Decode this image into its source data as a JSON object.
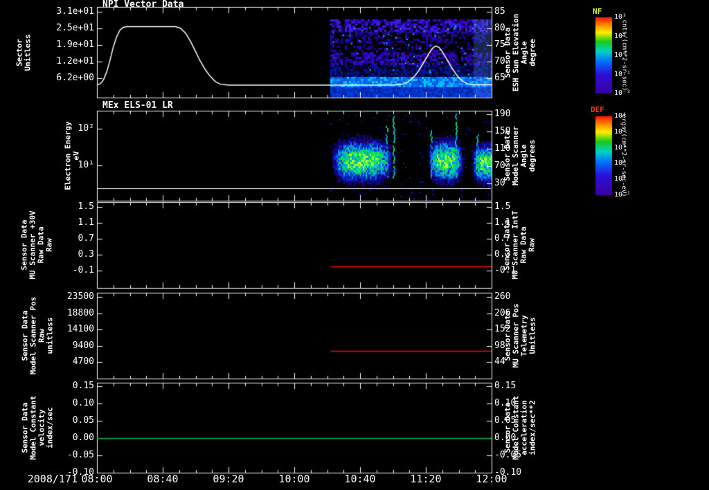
{
  "colors": {
    "background": "#000000",
    "axis": "#ffffff",
    "white_series": "#ffffff",
    "red_series": "#ff0000",
    "green_series": "#00b050",
    "nf_title_color": "#dce645",
    "def_title_color": "#ff3a00"
  },
  "xaxis": {
    "date_label": "2008/171",
    "tick_labels": [
      "08:00",
      "08:40",
      "09:20",
      "10:00",
      "10:40",
      "11:20",
      "12:00"
    ],
    "tick_minutes": [
      0,
      40,
      80,
      120,
      160,
      200,
      240
    ],
    "minor_tick_minutes": 10
  },
  "colorbars": [
    {
      "title": "NF",
      "unit": "cnts/(cm**2-sr-sec)",
      "tick_labels": [
        "10²",
        "10¹",
        "10⁰",
        "10⁻¹",
        "10⁻²"
      ],
      "gradient": [
        [
          0,
          "#ff1000"
        ],
        [
          0.1,
          "#ff8800"
        ],
        [
          0.2,
          "#ffee00"
        ],
        [
          0.32,
          "#18cc18"
        ],
        [
          0.45,
          "#00d2c8"
        ],
        [
          0.58,
          "#0072ff"
        ],
        [
          0.75,
          "#2a10d8"
        ],
        [
          1,
          "#3c00a0"
        ]
      ]
    },
    {
      "title": "DEF",
      "unit": "ergs/(cm**2-sr-sec-eV)",
      "tick_labels": [
        "10⁴",
        "10³",
        "10²",
        "10¹",
        "10⁰",
        "10⁻¹"
      ],
      "gradient": [
        [
          0,
          "#ff1000"
        ],
        [
          0.1,
          "#ff8800"
        ],
        [
          0.2,
          "#ffee00"
        ],
        [
          0.32,
          "#18cc18"
        ],
        [
          0.45,
          "#00d2c8"
        ],
        [
          0.58,
          "#0072ff"
        ],
        [
          0.75,
          "#2a10d8"
        ],
        [
          1,
          "#3c00a0"
        ]
      ]
    }
  ],
  "chart_data": [
    {
      "panel": 1,
      "type": "line+spectrogram",
      "title": "NPI Vector Data",
      "left_axis": {
        "label_lines": [
          "Sector",
          "Unitless"
        ],
        "tick_labels": [
          "3.1e+01",
          "2.5e+01",
          "1.9e+01",
          "1.2e+01",
          "6.2e+00"
        ],
        "tick_values": [
          31,
          25,
          19,
          12,
          6.2
        ]
      },
      "right_axis": {
        "label_lines": [
          "Sensor Data",
          "ESH Sun Elevation",
          "Angle",
          "degree"
        ],
        "tick_labels": [
          "85",
          "80",
          "75",
          "70",
          "65"
        ],
        "tick_values": [
          85,
          80,
          75,
          70,
          65
        ]
      },
      "series": [
        {
          "name": "esh-sun-elevation-angle",
          "color": "#ffffff",
          "axis": "right",
          "points": [
            [
              0,
              63
            ],
            [
              2,
              63.3
            ],
            [
              4,
              64.5
            ],
            [
              6,
              67
            ],
            [
              8,
              70.5
            ],
            [
              10,
              74.5
            ],
            [
              12,
              77.5
            ],
            [
              14,
              79.5
            ],
            [
              16,
              80.3
            ],
            [
              18,
              80.5
            ],
            [
              48,
              80.5
            ],
            [
              51,
              80
            ],
            [
              54,
              78.5
            ],
            [
              57,
              76
            ],
            [
              60,
              73
            ],
            [
              63,
              70
            ],
            [
              66,
              67.5
            ],
            [
              69,
              65.5
            ],
            [
              72,
              64
            ],
            [
              75,
              63.2
            ],
            [
              80,
              62.9
            ],
            [
              180,
              62.9
            ],
            [
              185,
              63.1
            ],
            [
              189,
              63.8
            ],
            [
              193,
              65.5
            ],
            [
              196,
              67.5
            ],
            [
              199,
              70
            ],
            [
              202,
              72.5
            ],
            [
              204,
              74
            ],
            [
              206,
              74.7
            ],
            [
              208,
              74.3
            ],
            [
              210,
              73
            ],
            [
              213,
              70.5
            ],
            [
              216,
              68
            ],
            [
              219,
              65.8
            ],
            [
              222,
              64.2
            ],
            [
              226,
              63.2
            ],
            [
              230,
              63
            ],
            [
              240,
              63
            ]
          ]
        }
      ],
      "spectrogram": {
        "t_start_min": 142,
        "t_end_min": 240,
        "bright_after_min": 229,
        "bands": [
          {
            "y0": 0.137,
            "y1": 0.282,
            "density": 0.93,
            "palette": [
              "#2d00bc",
              "#3b12dc",
              "#1c008c",
              "#000000",
              "#4020e0"
            ]
          },
          {
            "y0": 0.282,
            "y1": 0.382,
            "density": 0.85,
            "palette": [
              "#1a0090",
              "#000000",
              "#2d00bc",
              "#000000"
            ]
          },
          {
            "y0": 0.382,
            "y1": 0.504,
            "density": 0.45,
            "palette": [
              "#000000",
              "#16007c",
              "#2a00b0"
            ]
          },
          {
            "y0": 0.504,
            "y1": 0.641,
            "density": 0.9,
            "palette": [
              "#2d00bc",
              "#3512cc",
              "#1c008c",
              "#000000"
            ]
          },
          {
            "y0": 0.641,
            "y1": 0.771,
            "density": 0.96,
            "palette": [
              "#000348",
              "#001070",
              "#0018a0",
              "#000020"
            ]
          },
          {
            "y0": 0.771,
            "y1": 0.885,
            "density": 1,
            "palette": [
              "#0048e0",
              "#0078ff",
              "#00a0ff",
              "#0060f0",
              "#00c8ff"
            ]
          },
          {
            "y0": 0.885,
            "y1": 0.992,
            "density": 1,
            "palette": [
              "#0030c8",
              "#0024a8",
              "#0040dc"
            ]
          }
        ]
      }
    },
    {
      "panel": 2,
      "type": "spectrogram",
      "title": "MEx ELS-01 LR",
      "left_axis": {
        "label_lines": [
          "Electron Energy",
          "eV"
        ],
        "tick_labels": [
          "10²",
          "10¹"
        ],
        "tick_values": [
          100,
          10
        ]
      },
      "right_axis": {
        "label_lines": [
          "Sensor Data",
          "Model Scanner",
          "Angle",
          "degrees"
        ],
        "tick_labels": [
          "190",
          "150",
          "110",
          "70",
          "30"
        ],
        "tick_values": [
          190,
          150,
          110,
          70,
          30
        ]
      },
      "series": [
        {
          "name": "energy-baseline",
          "color": "#ffffff",
          "axis": "left_log_ev",
          "value": 2.4,
          "t0": 0,
          "t1": 240
        }
      ],
      "spectrogram": {
        "t_start_min": 142,
        "t_end_min": 240,
        "noise_density": 0.045,
        "noise_palette": [
          "#0000b0",
          "#1a00cc",
          "#002898",
          "#3000c0"
        ],
        "palette_levels": [
          "#12007c",
          "#0030d0",
          "#0090e8",
          "#00c8b0",
          "#00dc50",
          "#30f040",
          "#b0ff38"
        ],
        "blobs": [
          {
            "t0": 143,
            "t1": 183,
            "tc": 161,
            "rt": 16,
            "yc_ev": 14,
            "spread_dec": 0.45
          },
          {
            "t0": 200,
            "t1": 224,
            "tc": 212,
            "rt": 9,
            "yc_ev": 14,
            "spread_dec": 0.45
          },
          {
            "t0": 226,
            "t1": 241,
            "tc": 237,
            "rt": 8,
            "yc_ev": 12,
            "spread_dec": 0.42
          }
        ],
        "streaks": [
          {
            "t": 176,
            "top_ev": 120
          },
          {
            "t": 180,
            "top_ev": 220
          },
          {
            "t": 203,
            "top_ev": 90
          },
          {
            "t": 218,
            "top_ev": 260
          },
          {
            "t": 231,
            "top_ev": 70
          }
        ]
      }
    },
    {
      "panel": 3,
      "type": "line",
      "left_axis": {
        "label_lines": [
          "Sensor Data",
          "MU Scanner +30V",
          "Raw Data",
          "Raw"
        ],
        "tick_labels": [
          "1.5",
          "1.1",
          "0.7",
          "0.3",
          "-0.1"
        ],
        "tick_values": [
          1.5,
          1.1,
          0.7,
          0.3,
          -0.1
        ]
      },
      "right_axis": {
        "label_lines": [
          "Sensor Data",
          "MU Scanner IntT",
          "Raw Data",
          "Raw"
        ],
        "label_color": "#ff0000",
        "tick_labels": [
          "1.5",
          "1.1",
          "0.7",
          "0.3",
          "-0.1"
        ],
        "tick_values": [
          1.5,
          1.1,
          0.7,
          0.3,
          -0.1
        ]
      },
      "series": [
        {
          "name": "mu-scanner-intt",
          "color": "#ff0000",
          "axis": "right",
          "value": 0.0,
          "t0": 142,
          "t1": 240
        }
      ]
    },
    {
      "panel": 4,
      "type": "line",
      "left_axis": {
        "label_lines": [
          "Sensor Data",
          "Model Scanner Pos",
          "Raw",
          "unitless"
        ],
        "tick_labels": [
          "23500",
          "18800",
          "14100",
          "9400",
          "4700"
        ],
        "tick_values": [
          23500,
          18800,
          14100,
          9400,
          4700
        ]
      },
      "right_axis": {
        "label_lines": [
          "Sensor Data",
          "MU Scanner Pos",
          "Telemetry",
          "Unitless"
        ],
        "label_color": "#ff0000",
        "tick_labels": [
          "260",
          "206",
          "152",
          "98",
          "44"
        ],
        "tick_values": [
          260,
          206,
          152,
          98,
          44
        ]
      },
      "series": [
        {
          "name": "mu-scanner-pos-telemetry",
          "color": "#ff0000",
          "axis": "right",
          "value": 80,
          "t0": 142,
          "t1": 240
        }
      ]
    },
    {
      "panel": 5,
      "type": "line",
      "left_axis": {
        "label_lines": [
          "Sensor Data",
          "Model Constant",
          "velocity",
          "index/sec"
        ],
        "tick_labels": [
          "0.15",
          "0.10",
          "0.05",
          "0.00",
          "-0.05",
          "-0.10"
        ],
        "tick_values": [
          0.15,
          0.1,
          0.05,
          0,
          -0.05,
          -0.1
        ]
      },
      "right_axis": {
        "label_lines": [
          "Sensor Data",
          "Model Constant",
          "acceleration",
          "index/sec**2"
        ],
        "label_color": "#00b050",
        "tick_labels": [
          "0.15",
          "0.10",
          "0.05",
          "0.00",
          "-0.05",
          "-0.10"
        ],
        "tick_values": [
          0.15,
          0.1,
          0.05,
          0,
          -0.05,
          -0.1
        ]
      },
      "series": [
        {
          "name": "model-constant-acceleration",
          "color": "#00b050",
          "axis": "right",
          "value": 0.0,
          "t0": 0,
          "t1": 240
        }
      ]
    }
  ]
}
